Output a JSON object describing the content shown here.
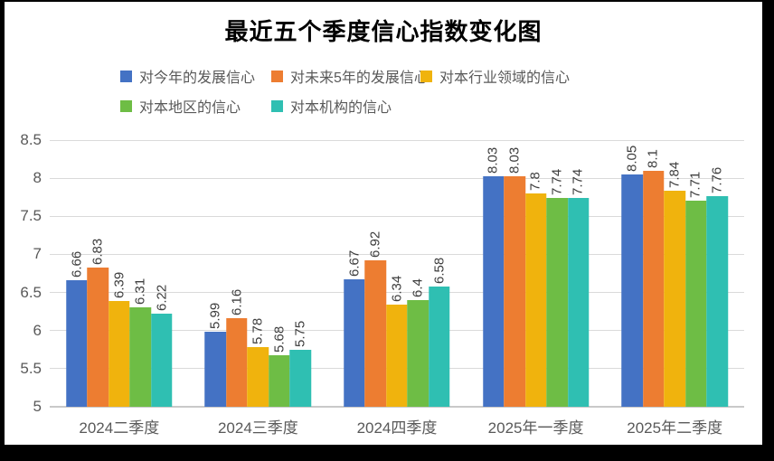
{
  "title": "最近五个季度信心指数变化图",
  "frame_color": "#000000",
  "legend": {
    "items": [
      {
        "label": "对今年的发展信心",
        "color": "#4472C4"
      },
      {
        "label": "对未来5年的发展信心",
        "color": "#ED7D31"
      },
      {
        "label": "对本行业领域的信心",
        "color": "#F0B30D"
      },
      {
        "label": "对本地区的信心",
        "color": "#6EBD45"
      },
      {
        "label": "对本机构的信心",
        "color": "#2FBFB2"
      }
    ]
  },
  "chart_data": {
    "type": "bar",
    "title": "最近五个季度信心指数变化图",
    "categories": [
      "2024二季度",
      "2024三季度",
      "2024四季度",
      "2025年一季度",
      "2025年二季度"
    ],
    "series": [
      {
        "name": "对今年的发展信心",
        "color": "#4472C4",
        "values": [
          6.66,
          5.99,
          6.67,
          8.03,
          8.05
        ]
      },
      {
        "name": "对未来5年的发展信心",
        "color": "#ED7D31",
        "values": [
          6.83,
          6.16,
          6.92,
          8.03,
          8.1
        ]
      },
      {
        "name": "对本行业领域的信心",
        "color": "#F0B30D",
        "values": [
          6.39,
          5.78,
          6.34,
          7.8,
          7.84
        ]
      },
      {
        "name": "对本地区的信心",
        "color": "#6EBD45",
        "values": [
          6.31,
          5.68,
          6.4,
          7.74,
          7.71
        ]
      },
      {
        "name": "对本机构的信心",
        "color": "#2FBFB2",
        "values": [
          6.22,
          5.75,
          6.58,
          7.74,
          7.76
        ]
      }
    ],
    "xlabel": "",
    "ylabel": "",
    "ylim": [
      5,
      8.5
    ],
    "yticks": [
      5,
      5.5,
      6,
      6.5,
      7,
      7.5,
      8,
      8.5
    ],
    "grid": true,
    "legend_position": "top",
    "value_labels": "rotated-vertical"
  }
}
